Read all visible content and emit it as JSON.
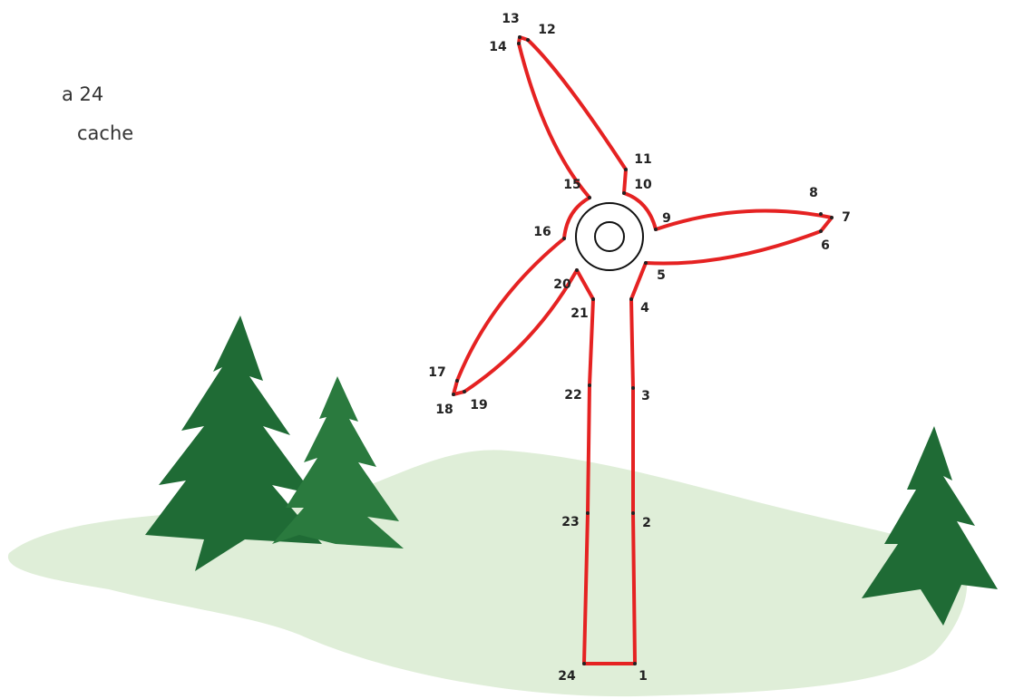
{
  "instructions": [
    "a 24",
    "cache"
  ],
  "dots": [
    "1",
    "2",
    "3",
    "4",
    "5",
    "6",
    "7",
    "8",
    "9",
    "10",
    "11",
    "12",
    "13",
    "14",
    "15",
    "16",
    "17",
    "18",
    "19",
    "20",
    "21",
    "22",
    "23",
    "24"
  ]
}
